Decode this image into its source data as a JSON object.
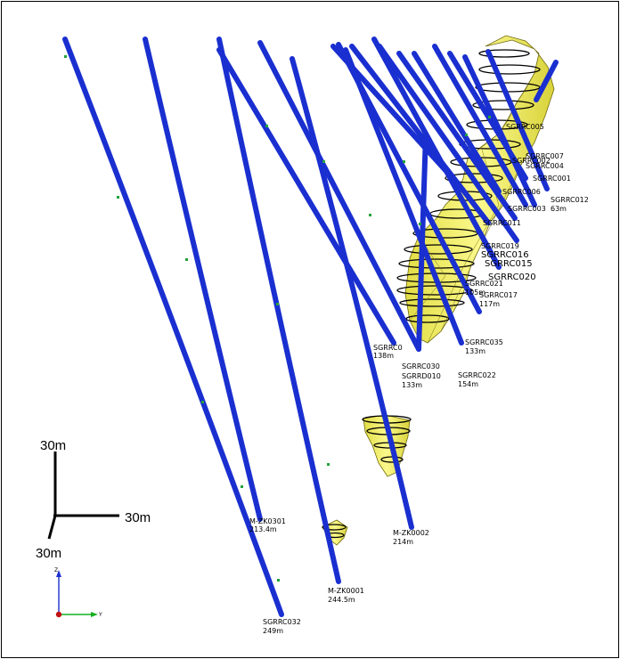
{
  "scale_bar": {
    "vertical_label": "30m",
    "horizontal_label": "30m",
    "depth_label": "30m"
  },
  "axes": {
    "z_label": "Z",
    "y_label": "Y"
  },
  "drillholes": [
    {
      "id": "SGRRC032",
      "depth": "249m"
    },
    {
      "id": "M-ZK0301",
      "depth": "213.4m"
    },
    {
      "id": "M-ZK0001",
      "depth": "244.5m"
    },
    {
      "id": "M-ZK0002",
      "depth": "214m"
    },
    {
      "id": "SGRRC030",
      "depth": "133m"
    },
    {
      "id": "SGRRD010",
      "depth": ""
    },
    {
      "id": "SGRRC0",
      "depth": "138m"
    },
    {
      "id": "SGRRC035",
      "depth": "133m"
    },
    {
      "id": "SGRRC022",
      "depth": "154m"
    },
    {
      "id": "SGRRC012",
      "depth": "63m"
    },
    {
      "id": "SGRRC020",
      "depth": ""
    },
    {
      "id": "SGRRC017",
      "depth": "117m"
    },
    {
      "id": "SGRRC016",
      "depth": ""
    },
    {
      "id": "SGRRC015",
      "depth": ""
    },
    {
      "id": "SGRRC019",
      "depth": ""
    },
    {
      "id": "SGRRC021",
      "depth": "105m"
    },
    {
      "id": "SGRRC007",
      "depth": ""
    },
    {
      "id": "SGRRC004",
      "depth": ""
    },
    {
      "id": "SGRRC001",
      "depth": ""
    },
    {
      "id": "SGRRC002",
      "depth": ""
    },
    {
      "id": "SGRRC005",
      "depth": ""
    },
    {
      "id": "SGRRC003",
      "depth": ""
    },
    {
      "id": "SGRRC006",
      "depth": ""
    },
    {
      "id": "SGRRC011",
      "depth": ""
    }
  ],
  "colors": {
    "drillhole": "#1a2fd0",
    "trace_mark": "#22a23a",
    "orebody_fill": "#f1f06a",
    "orebody_edge": "#6f6a10",
    "ring": "#000000",
    "z_axis": "#1d2fd0",
    "y_axis": "#15b020",
    "origin": "#c01010"
  }
}
